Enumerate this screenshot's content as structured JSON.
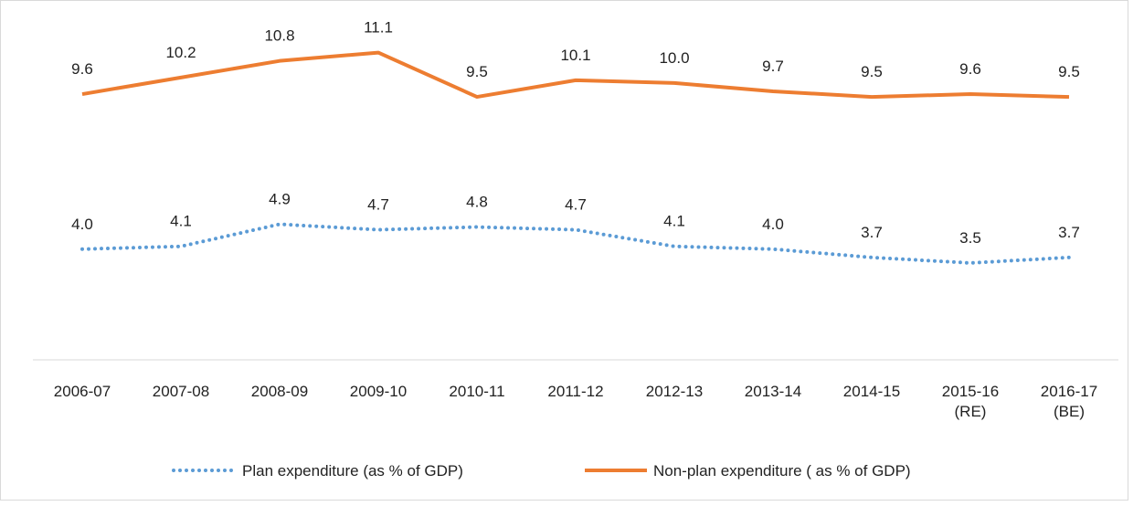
{
  "chart_data": {
    "type": "line",
    "categories": [
      "2006-07",
      "2007-08",
      "2008-09",
      "2009-10",
      "2010-11",
      "2011-12",
      "2012-13",
      "2013-14",
      "2014-15",
      "2015-16\n(RE)",
      "2016-17\n(BE)"
    ],
    "series": [
      {
        "name": "Plan expenditure  (as % of GDP)",
        "color": "#5b9bd5",
        "style": "dotted",
        "values": [
          4.0,
          4.1,
          4.9,
          4.7,
          4.8,
          4.7,
          4.1,
          4.0,
          3.7,
          3.5,
          3.7
        ],
        "value_labels": [
          "4.0",
          "4.1",
          "4.9",
          "4.7",
          "4.8",
          "4.7",
          "4.1",
          "4.0",
          "3.7",
          "3.5",
          "3.7"
        ]
      },
      {
        "name": "Non-plan expenditure ( as % of GDP)",
        "color": "#ed7d31",
        "style": "solid",
        "values": [
          9.6,
          10.2,
          10.8,
          11.1,
          9.5,
          10.1,
          10.0,
          9.7,
          9.5,
          9.6,
          9.5
        ],
        "value_labels": [
          "9.6",
          "10.2",
          "10.8",
          "11.1",
          "9.5",
          "10.1",
          "10.0",
          "9.7",
          "9.5",
          "9.6",
          "9.5"
        ]
      }
    ],
    "ylim": [
      0,
      13
    ],
    "legend": "bottom"
  }
}
